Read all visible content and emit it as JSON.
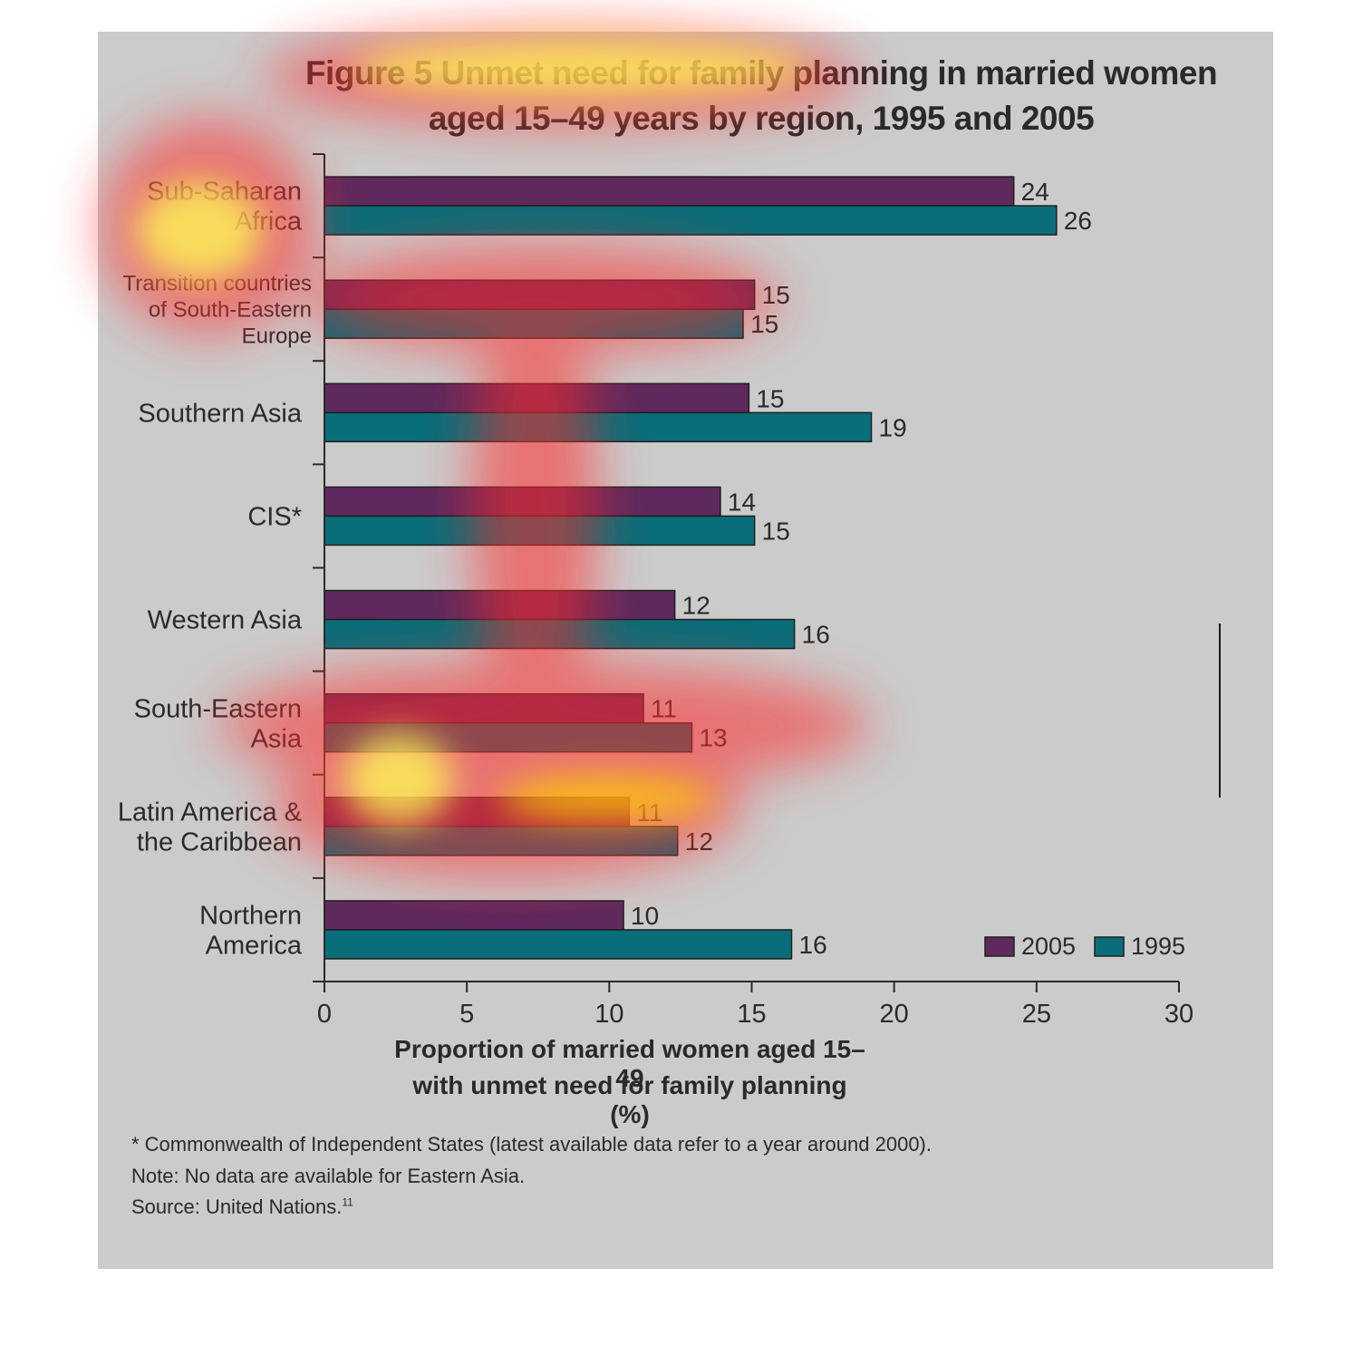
{
  "chart_data": {
    "type": "bar",
    "orientation": "horizontal",
    "title_line1": "Figure 5 Unmet need for family planning in married women",
    "title_line2": "aged 15–49 years by region, 1995 and 2005",
    "xlabel_line1": "Proportion of married women aged 15–49",
    "xlabel_line2": "with unmet need for family planning (%)",
    "ylabel": "",
    "xlim": [
      0,
      30
    ],
    "xticks": [
      0,
      5,
      10,
      15,
      20,
      25,
      30
    ],
    "legend_position": "bottom-right",
    "grid": false,
    "categories": [
      [
        "Sub-Saharan",
        "Africa"
      ],
      [
        "Transition countries",
        "of South-Eastern",
        "Europe"
      ],
      [
        "Southern Asia"
      ],
      [
        "CIS*"
      ],
      [
        "Western Asia"
      ],
      [
        "South-Eastern",
        "Asia"
      ],
      [
        "Latin America &",
        "the Caribbean"
      ],
      [
        "Northern",
        "America"
      ]
    ],
    "series": [
      {
        "name": "2005",
        "color": "#5e2a5e",
        "values": [
          24.2,
          15.1,
          14.9,
          13.9,
          12.3,
          11.2,
          10.7,
          10.5
        ],
        "labels": [
          "24",
          "15",
          "15",
          "14",
          "12",
          "11",
          "11",
          "10"
        ]
      },
      {
        "name": "1995",
        "color": "#0a6e7a",
        "values": [
          25.7,
          14.7,
          19.2,
          15.1,
          16.5,
          12.9,
          12.4,
          16.4
        ],
        "labels": [
          "26",
          "15",
          "19",
          "15",
          "16",
          "13",
          "12",
          "16"
        ]
      }
    ]
  },
  "notes": {
    "line1": "* Commonwealth of Independent States (latest available data refer to a year around 2000).",
    "line2": "Note: No data are available for Eastern Asia.",
    "line3": "Source: United Nations.",
    "line3_ref": "11"
  },
  "colors": {
    "background": "#cbcbcb",
    "heatmap_hot": "#ffff66",
    "heatmap_warm": "#ff3030"
  }
}
